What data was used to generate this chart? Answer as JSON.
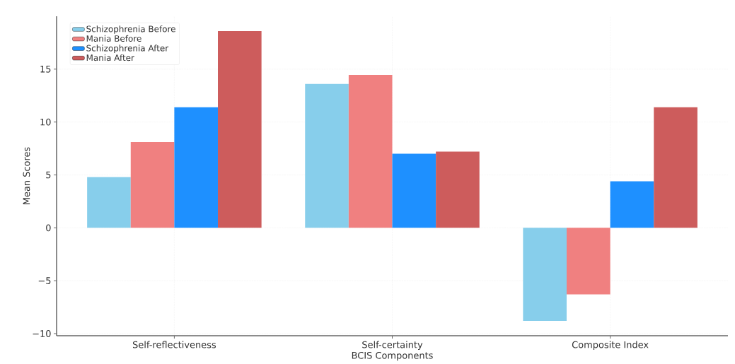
{
  "chart_data": {
    "type": "bar",
    "xlabel": "BCIS Components",
    "ylabel": "Mean Scores",
    "categories": [
      "Self-reflectiveness",
      "Self-certainty",
      "Composite Index"
    ],
    "series": [
      {
        "name": "Schizophrenia Before",
        "color": "#87ceeb",
        "values": [
          4.8,
          13.6,
          -8.8
        ]
      },
      {
        "name": "Mania Before",
        "color": "#f08080",
        "values": [
          8.1,
          14.45,
          -6.3
        ]
      },
      {
        "name": "Schizophrenia After",
        "color": "#1e90ff",
        "values": [
          11.4,
          7.0,
          4.4
        ]
      },
      {
        "name": "Mania After",
        "color": "#cd5c5c",
        "values": [
          18.6,
          7.2,
          11.4
        ]
      }
    ],
    "ylim": [
      -10.2,
      20
    ],
    "yticks": [
      {
        "value": -10,
        "label": "−10"
      },
      {
        "value": -5,
        "label": "−5"
      },
      0,
      5,
      10,
      15
    ],
    "grid": true,
    "legend": "top left"
  }
}
